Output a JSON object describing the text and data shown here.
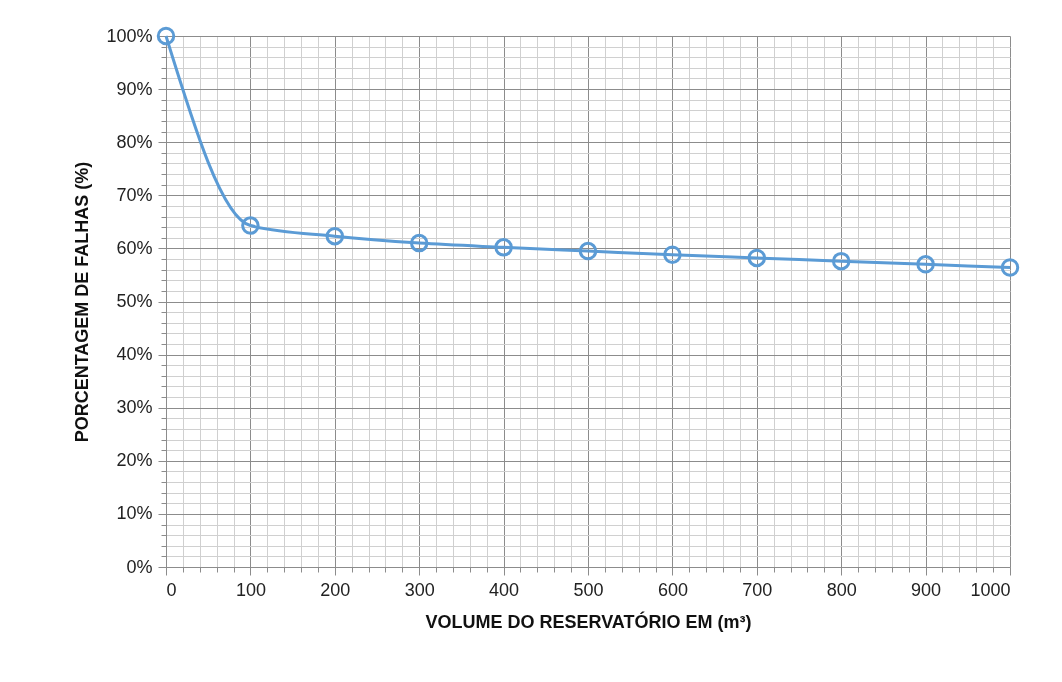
{
  "chart_data": {
    "type": "line",
    "xlabel": "VOLUME DO RESERVATÓRIO EM (m³)",
    "ylabel": "PORCENTAGEM DE FALHAS (%)",
    "x": [
      0,
      100,
      200,
      300,
      400,
      500,
      600,
      700,
      800,
      900,
      1000
    ],
    "series": [
      {
        "color": "#5b9bd5",
        "values": [
          100,
          64.3,
          62.3,
          61.0,
          60.2,
          59.5,
          58.8,
          58.2,
          57.6,
          57.0,
          56.4
        ]
      }
    ],
    "xlim": [
      0,
      1000
    ],
    "xticks": [
      0,
      {
        "value": 20,
        "label": null
      },
      {
        "value": 40,
        "label": null
      },
      {
        "value": 60,
        "label": null
      },
      {
        "value": 80,
        "label": null
      },
      100,
      {
        "value": 120,
        "label": null
      },
      {
        "value": 140,
        "label": null
      },
      {
        "value": 160,
        "label": null
      },
      {
        "value": 180,
        "label": null
      },
      200,
      {
        "value": 220,
        "label": null
      },
      {
        "value": 240,
        "label": null
      },
      {
        "value": 260,
        "label": null
      },
      {
        "value": 280,
        "label": null
      },
      300,
      {
        "value": 320,
        "label": null
      },
      {
        "value": 340,
        "label": null
      },
      {
        "value": 360,
        "label": null
      },
      {
        "value": 380,
        "label": null
      },
      400,
      {
        "value": 420,
        "label": null
      },
      {
        "value": 440,
        "label": null
      },
      {
        "value": 460,
        "label": null
      },
      {
        "value": 480,
        "label": null
      },
      500,
      {
        "value": 520,
        "label": null
      },
      {
        "value": 540,
        "label": null
      },
      {
        "value": 560,
        "label": null
      },
      {
        "value": 580,
        "label": null
      },
      600,
      {
        "value": 620,
        "label": null
      },
      {
        "value": 640,
        "label": null
      },
      {
        "value": 660,
        "label": null
      },
      {
        "value": 680,
        "label": null
      },
      700,
      {
        "value": 720,
        "label": null
      },
      {
        "value": 740,
        "label": null
      },
      {
        "value": 760,
        "label": null
      },
      {
        "value": 780,
        "label": null
      },
      800,
      {
        "value": 820,
        "label": null
      },
      {
        "value": 840,
        "label": null
      },
      {
        "value": 860,
        "label": null
      },
      {
        "value": 880,
        "label": null
      },
      900,
      {
        "value": 920,
        "label": null
      },
      {
        "value": 940,
        "label": null
      },
      {
        "value": 960,
        "label": null
      },
      {
        "value": 980,
        "label": null
      },
      1000
    ],
    "ylim": [
      0,
      100
    ],
    "yticks": [
      {
        "value": 0,
        "label": "0%"
      },
      {
        "value": 2,
        "label": null
      },
      {
        "value": 4,
        "label": null
      },
      {
        "value": 6,
        "label": null
      },
      {
        "value": 8,
        "label": null
      },
      {
        "value": 10,
        "label": "10%"
      },
      {
        "value": 12,
        "label": null
      },
      {
        "value": 14,
        "label": null
      },
      {
        "value": 16,
        "label": null
      },
      {
        "value": 18,
        "label": null
      },
      {
        "value": 20,
        "label": "20%"
      },
      {
        "value": 22,
        "label": null
      },
      {
        "value": 24,
        "label": null
      },
      {
        "value": 26,
        "label": null
      },
      {
        "value": 28,
        "label": null
      },
      {
        "value": 30,
        "label": "30%"
      },
      {
        "value": 32,
        "label": null
      },
      {
        "value": 34,
        "label": null
      },
      {
        "value": 36,
        "label": null
      },
      {
        "value": 38,
        "label": null
      },
      {
        "value": 40,
        "label": "40%"
      },
      {
        "value": 42,
        "label": null
      },
      {
        "value": 44,
        "label": null
      },
      {
        "value": 46,
        "label": null
      },
      {
        "value": 48,
        "label": null
      },
      {
        "value": 50,
        "label": "50%"
      },
      {
        "value": 52,
        "label": null
      },
      {
        "value": 54,
        "label": null
      },
      {
        "value": 56,
        "label": null
      },
      {
        "value": 58,
        "label": null
      },
      {
        "value": 60,
        "label": "60%"
      },
      {
        "value": 62,
        "label": null
      },
      {
        "value": 64,
        "label": null
      },
      {
        "value": 66,
        "label": null
      },
      {
        "value": 68,
        "label": null
      },
      {
        "value": 70,
        "label": "70%"
      },
      {
        "value": 72,
        "label": null
      },
      {
        "value": 74,
        "label": null
      },
      {
        "value": 76,
        "label": null
      },
      {
        "value": 78,
        "label": null
      },
      {
        "value": 80,
        "label": "80%"
      },
      {
        "value": 82,
        "label": null
      },
      {
        "value": 84,
        "label": null
      },
      {
        "value": 86,
        "label": null
      },
      {
        "value": 88,
        "label": null
      },
      {
        "value": 90,
        "label": "90%"
      },
      {
        "value": 92,
        "label": null
      },
      {
        "value": 94,
        "label": null
      },
      {
        "value": 96,
        "label": null
      },
      {
        "value": 98,
        "label": null
      },
      {
        "value": 100,
        "label": "100%"
      }
    ],
    "grid": true,
    "marker": "circle",
    "line_style": "solid"
  }
}
